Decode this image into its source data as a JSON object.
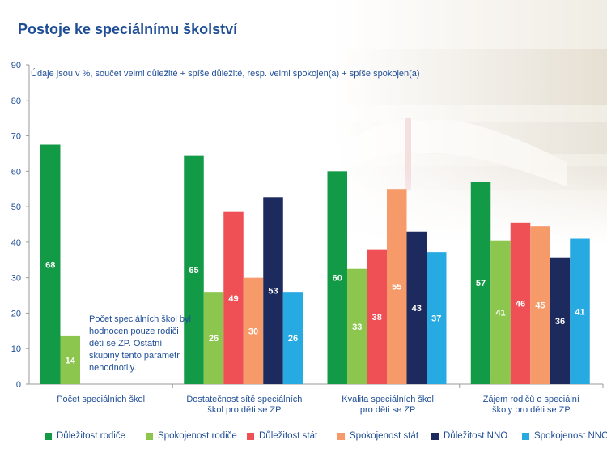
{
  "title": "Postoje ke speciálnímu školství",
  "note": "Údaje jsou v %, součet velmi důležité + spíše důležité, resp. velmi spokojen(a) + spíše spokojen(a)",
  "annotation": "Počet speciálních škol byl hodnocen pouze rodiči dětí se ZP. Ostatní skupiny tento parametr nehodnotily.",
  "chart_data": {
    "type": "bar",
    "categories": [
      "Počet speciálních škol",
      "Dostatečnost sítě speciálních škol pro děti se ZP",
      "Kvalita speciálních škol pro děti se ZP",
      "Zájem rodičů o speciální školy pro děti se ZP"
    ],
    "ylim": [
      0,
      90
    ],
    "yticks": [
      0,
      10,
      20,
      30,
      40,
      50,
      60,
      70,
      80,
      90
    ],
    "legend_position": "bottom",
    "series": [
      {
        "name": "Důležitost rodiče",
        "color": "#139a47",
        "values": [
          67.5,
          64.5,
          60,
          57
        ],
        "labels": [
          "68",
          "65",
          "60",
          "57"
        ]
      },
      {
        "name": "Spokojenost rodiče",
        "color": "#8cc64f",
        "values": [
          13.5,
          26,
          32.5,
          40.5
        ],
        "labels": [
          "14",
          "26",
          "33",
          "41"
        ]
      },
      {
        "name": "Důležitost stát",
        "color": "#ef5055",
        "values": [
          null,
          48.5,
          38,
          45.5
        ],
        "labels": [
          "",
          "49",
          "38",
          "46"
        ]
      },
      {
        "name": "Spokojenost stát",
        "color": "#f79a6a",
        "values": [
          null,
          30,
          55,
          44.5
        ],
        "labels": [
          "",
          "30",
          "55",
          "45"
        ]
      },
      {
        "name": "Důležitost NNO",
        "color": "#1d2a5e",
        "values": [
          null,
          52.7,
          43,
          35.7
        ],
        "labels": [
          "",
          "53",
          "43",
          "36"
        ]
      },
      {
        "name": "Spokojenost NNO",
        "color": "#27a9e1",
        "values": [
          null,
          26,
          37.2,
          41
        ],
        "labels": [
          "",
          "26",
          "37",
          "41"
        ]
      }
    ]
  }
}
